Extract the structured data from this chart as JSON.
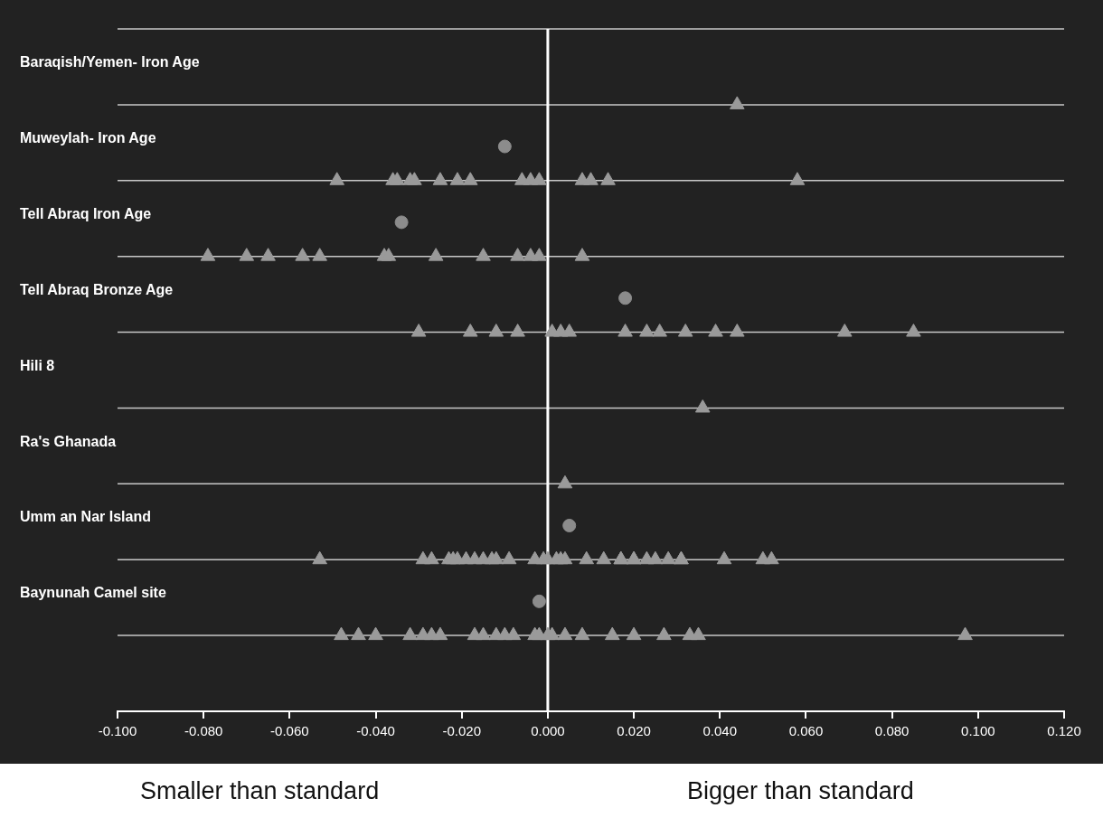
{
  "chart_data": {
    "type": "scatter",
    "orientation": "horizontal",
    "categories": [
      "Baraqish/Yemen- Iron Age",
      "Muweylah- Iron Age",
      "Tell Abraq Iron Age",
      "Tell Abraq Bronze Age",
      "Hili 8",
      "Ra's Ghanada",
      "Umm an Nar Island",
      "Baynunah Camel site"
    ],
    "xlim": [
      -0.1,
      0.12
    ],
    "xticks": [
      {
        "value": -0.1,
        "label": "-0.100"
      },
      {
        "value": -0.08,
        "label": "-0.080"
      },
      {
        "value": -0.06,
        "label": "-0.060"
      },
      {
        "value": -0.04,
        "label": "-0.040"
      },
      {
        "value": -0.02,
        "label": "-0.020"
      },
      {
        "value": 0,
        "label": "0.000"
      },
      {
        "value": 0.02,
        "label": "0.020"
      },
      {
        "value": 0.04,
        "label": "0.040"
      },
      {
        "value": 0.06,
        "label": "0.060"
      },
      {
        "value": 0.08,
        "label": "0.080"
      },
      {
        "value": 0.1,
        "label": "0.100"
      },
      {
        "value": 0.12,
        "label": "0.120"
      }
    ],
    "grid": "y",
    "legend": false,
    "ref_lines": [
      {
        "axis": "x",
        "value": 0,
        "color": "#ffffff"
      }
    ],
    "annotations": [
      "Smaller than standard",
      "Bigger than standard"
    ],
    "series": [
      {
        "marker": "triangle",
        "color": "#9a9a9a",
        "values": [
          0.044,
          -0.049,
          -0.036,
          -0.035,
          -0.032,
          -0.031,
          -0.025,
          -0.021,
          -0.018,
          -0.006,
          -0.004,
          -0.002,
          0.008,
          0.01,
          0.014,
          0.058,
          -0.079,
          -0.07,
          -0.065,
          -0.057,
          -0.053,
          -0.038,
          -0.037,
          -0.026,
          -0.015,
          -0.007,
          -0.004,
          -0.002,
          0.008,
          -0.03,
          -0.018,
          -0.012,
          -0.007,
          0.001,
          0.003,
          0.005,
          0.018,
          0.023,
          0.026,
          0.032,
          0.039,
          0.044,
          0.069,
          0.085,
          0.036,
          0.004,
          -0.053,
          -0.029,
          -0.027,
          -0.023,
          -0.022,
          -0.021,
          -0.019,
          -0.017,
          -0.015,
          -0.013,
          -0.012,
          -0.009,
          -0.003,
          -0.001,
          0.003,
          0.0,
          0.002,
          0.004,
          0.009,
          0.013,
          0.017,
          0.017,
          0.02,
          0.02,
          0.023,
          0.025,
          0.028,
          0.031,
          0.031,
          0.041,
          0.05,
          0.052,
          -0.048,
          -0.044,
          -0.04,
          -0.032,
          -0.029,
          -0.027,
          -0.025,
          -0.017,
          -0.015,
          -0.012,
          -0.01,
          -0.008,
          -0.003,
          -0.002,
          0.0,
          0.001,
          0.004,
          0.008,
          0.015,
          0.02,
          0.027,
          0.033,
          0.035,
          0.097
        ],
        "x": [
          "Baraqish/Yemen- Iron Age",
          "Muweylah- Iron Age",
          "Muweylah- Iron Age",
          "Muweylah- Iron Age",
          "Muweylah- Iron Age",
          "Muweylah- Iron Age",
          "Muweylah- Iron Age",
          "Muweylah- Iron Age",
          "Muweylah- Iron Age",
          "Muweylah- Iron Age",
          "Muweylah- Iron Age",
          "Muweylah- Iron Age",
          "Muweylah- Iron Age",
          "Muweylah- Iron Age",
          "Muweylah- Iron Age",
          "Muweylah- Iron Age",
          "Tell Abraq Iron Age",
          "Tell Abraq Iron Age",
          "Tell Abraq Iron Age",
          "Tell Abraq Iron Age",
          "Tell Abraq Iron Age",
          "Tell Abraq Iron Age",
          "Tell Abraq Iron Age",
          "Tell Abraq Iron Age",
          "Tell Abraq Iron Age",
          "Tell Abraq Iron Age",
          "Tell Abraq Iron Age",
          "Tell Abraq Iron Age",
          "Tell Abraq Iron Age",
          "Tell Abraq Bronze Age",
          "Tell Abraq Bronze Age",
          "Tell Abraq Bronze Age",
          "Tell Abraq Bronze Age",
          "Tell Abraq Bronze Age",
          "Tell Abraq Bronze Age",
          "Tell Abraq Bronze Age",
          "Tell Abraq Bronze Age",
          "Tell Abraq Bronze Age",
          "Tell Abraq Bronze Age",
          "Tell Abraq Bronze Age",
          "Tell Abraq Bronze Age",
          "Tell Abraq Bronze Age",
          "Tell Abraq Bronze Age",
          "Tell Abraq Bronze Age",
          "Hili 8",
          "Ra's Ghanada",
          "Umm an Nar Island",
          "Umm an Nar Island",
          "Umm an Nar Island",
          "Umm an Nar Island",
          "Umm an Nar Island",
          "Umm an Nar Island",
          "Umm an Nar Island",
          "Umm an Nar Island",
          "Umm an Nar Island",
          "Umm an Nar Island",
          "Umm an Nar Island",
          "Umm an Nar Island",
          "Umm an Nar Island",
          "Umm an Nar Island",
          "Umm an Nar Island",
          "Umm an Nar Island",
          "Umm an Nar Island",
          "Umm an Nar Island",
          "Umm an Nar Island",
          "Umm an Nar Island",
          "Umm an Nar Island",
          "Umm an Nar Island",
          "Umm an Nar Island",
          "Umm an Nar Island",
          "Umm an Nar Island",
          "Umm an Nar Island",
          "Umm an Nar Island",
          "Umm an Nar Island",
          "Umm an Nar Island",
          "Umm an Nar Island",
          "Umm an Nar Island",
          "Umm an Nar Island",
          "Baynunah Camel site",
          "Baynunah Camel site",
          "Baynunah Camel site",
          "Baynunah Camel site",
          "Baynunah Camel site",
          "Baynunah Camel site",
          "Baynunah Camel site",
          "Baynunah Camel site",
          "Baynunah Camel site",
          "Baynunah Camel site",
          "Baynunah Camel site",
          "Baynunah Camel site",
          "Baynunah Camel site",
          "Baynunah Camel site",
          "Baynunah Camel site",
          "Baynunah Camel site",
          "Baynunah Camel site",
          "Baynunah Camel site",
          "Baynunah Camel site",
          "Baynunah Camel site",
          "Baynunah Camel site",
          "Baynunah Camel site",
          "Baynunah Camel site",
          "Baynunah Camel site"
        ]
      },
      {
        "marker": "circle",
        "color": "#8c8c8c",
        "values": [
          -0.01,
          -0.034,
          0.018,
          0.005,
          -0.002
        ],
        "x": [
          "Muweylah- Iron Age",
          "Tell Abraq Iron Age",
          "Tell Abraq Bronze Age",
          "Umm an Nar Island",
          "Baynunah Camel site"
        ]
      }
    ]
  }
}
